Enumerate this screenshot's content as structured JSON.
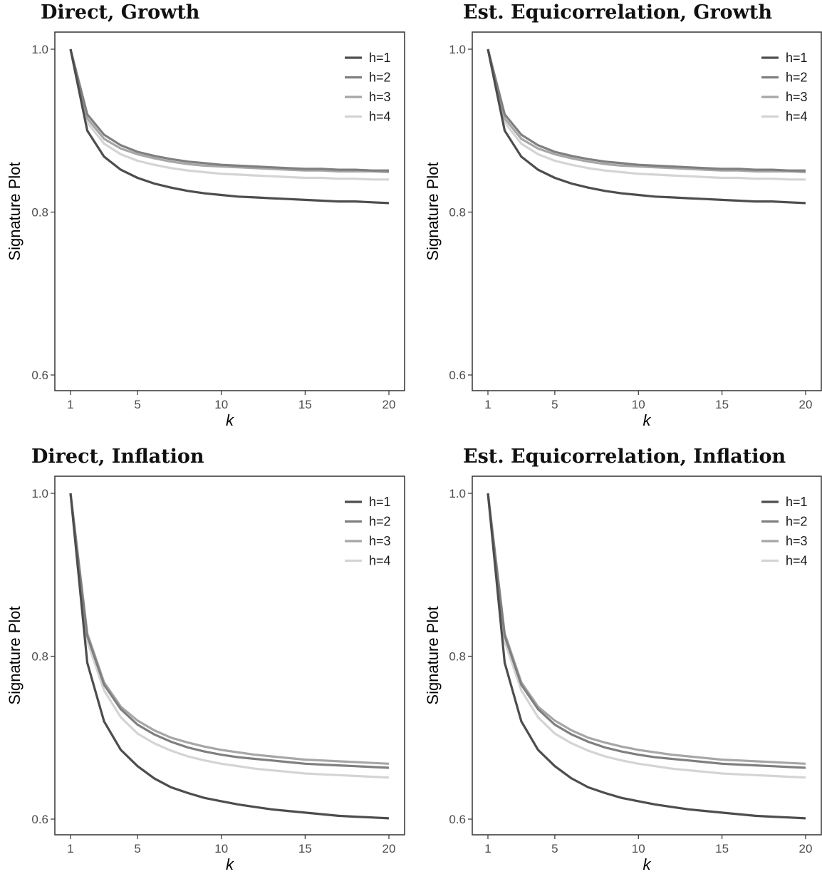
{
  "colors": {
    "h1": "#4d4d4d",
    "h2": "#7f7f7f",
    "h3": "#a6a6a6",
    "h4": "#d4d4d4",
    "axis": "#333333",
    "tick_label": "#4d4d4d"
  },
  "chart_data": [
    {
      "type": "line",
      "title": "Direct, Growth",
      "xlabel": "k",
      "ylabel": "Signature Plot",
      "xlim": [
        1,
        20
      ],
      "ylim": [
        0.6,
        1.0
      ],
      "xticks": [
        1,
        5,
        10,
        15,
        20
      ],
      "yticks": [
        0.6,
        0.8,
        1.0
      ],
      "ytick_labels": [
        "0.6",
        "0.8",
        "1.0"
      ],
      "legend_position": "top-right",
      "grid": false,
      "x": [
        1,
        2,
        3,
        4,
        5,
        6,
        7,
        8,
        9,
        10,
        11,
        12,
        13,
        14,
        15,
        16,
        17,
        18,
        19,
        20
      ],
      "series": [
        {
          "name": "h=1",
          "values": [
            1.0,
            0.9,
            0.868,
            0.852,
            0.842,
            0.835,
            0.83,
            0.826,
            0.823,
            0.821,
            0.819,
            0.818,
            0.817,
            0.816,
            0.815,
            0.814,
            0.813,
            0.813,
            0.812,
            0.811
          ]
        },
        {
          "name": "h=2",
          "values": [
            1.0,
            0.92,
            0.895,
            0.882,
            0.874,
            0.869,
            0.865,
            0.862,
            0.86,
            0.858,
            0.857,
            0.856,
            0.855,
            0.854,
            0.853,
            0.853,
            0.852,
            0.852,
            0.851,
            0.851
          ]
        },
        {
          "name": "h=3",
          "values": [
            1.0,
            0.915,
            0.89,
            0.878,
            0.871,
            0.866,
            0.862,
            0.859,
            0.857,
            0.856,
            0.855,
            0.854,
            0.853,
            0.852,
            0.851,
            0.851,
            0.85,
            0.85,
            0.85,
            0.849
          ]
        },
        {
          "name": "h=4",
          "values": [
            1.0,
            0.91,
            0.884,
            0.871,
            0.863,
            0.858,
            0.854,
            0.851,
            0.849,
            0.847,
            0.846,
            0.845,
            0.844,
            0.843,
            0.842,
            0.842,
            0.841,
            0.841,
            0.84,
            0.84
          ]
        }
      ]
    },
    {
      "type": "line",
      "title": "Est. Equicorrelation, Growth",
      "xlabel": "k",
      "ylabel": "Signature Plot",
      "xlim": [
        1,
        20
      ],
      "ylim": [
        0.6,
        1.0
      ],
      "xticks": [
        1,
        5,
        10,
        15,
        20
      ],
      "yticks": [
        0.6,
        0.8,
        1.0
      ],
      "ytick_labels": [
        "0.6",
        "0.8",
        "1.0"
      ],
      "legend_position": "top-right",
      "grid": false,
      "x": [
        1,
        2,
        3,
        4,
        5,
        6,
        7,
        8,
        9,
        10,
        11,
        12,
        13,
        14,
        15,
        16,
        17,
        18,
        19,
        20
      ],
      "series": [
        {
          "name": "h=1",
          "values": [
            1.0,
            0.9,
            0.868,
            0.852,
            0.842,
            0.835,
            0.83,
            0.826,
            0.823,
            0.821,
            0.819,
            0.818,
            0.817,
            0.816,
            0.815,
            0.814,
            0.813,
            0.813,
            0.812,
            0.811
          ]
        },
        {
          "name": "h=2",
          "values": [
            1.0,
            0.92,
            0.895,
            0.882,
            0.874,
            0.869,
            0.865,
            0.862,
            0.86,
            0.858,
            0.857,
            0.856,
            0.855,
            0.854,
            0.853,
            0.853,
            0.852,
            0.852,
            0.851,
            0.851
          ]
        },
        {
          "name": "h=3",
          "values": [
            1.0,
            0.915,
            0.89,
            0.878,
            0.871,
            0.866,
            0.862,
            0.859,
            0.857,
            0.856,
            0.855,
            0.854,
            0.853,
            0.852,
            0.851,
            0.851,
            0.85,
            0.85,
            0.85,
            0.849
          ]
        },
        {
          "name": "h=4",
          "values": [
            1.0,
            0.91,
            0.884,
            0.871,
            0.863,
            0.858,
            0.854,
            0.851,
            0.849,
            0.847,
            0.846,
            0.845,
            0.844,
            0.843,
            0.842,
            0.842,
            0.841,
            0.841,
            0.84,
            0.84
          ]
        }
      ]
    },
    {
      "type": "line",
      "title": "Direct, Inflation",
      "xlabel": "k",
      "ylabel": "Signature Plot",
      "xlim": [
        1,
        20
      ],
      "ylim": [
        0.6,
        1.0
      ],
      "xticks": [
        1,
        5,
        10,
        15,
        20
      ],
      "yticks": [
        0.6,
        0.8,
        1.0
      ],
      "ytick_labels": [
        "0.6",
        "0.8",
        "1.0"
      ],
      "legend_position": "top-right",
      "grid": false,
      "x": [
        1,
        2,
        3,
        4,
        5,
        6,
        7,
        8,
        9,
        10,
        11,
        12,
        13,
        14,
        15,
        16,
        17,
        18,
        19,
        20
      ],
      "series": [
        {
          "name": "h=1",
          "values": [
            1.0,
            0.792,
            0.72,
            0.685,
            0.665,
            0.65,
            0.639,
            0.632,
            0.626,
            0.622,
            0.618,
            0.615,
            0.612,
            0.61,
            0.608,
            0.606,
            0.604,
            0.603,
            0.602,
            0.601
          ]
        },
        {
          "name": "h=2",
          "values": [
            1.0,
            0.825,
            0.765,
            0.735,
            0.716,
            0.704,
            0.695,
            0.688,
            0.683,
            0.679,
            0.676,
            0.674,
            0.672,
            0.67,
            0.668,
            0.667,
            0.666,
            0.665,
            0.664,
            0.663
          ]
        },
        {
          "name": "h=3",
          "values": [
            1.0,
            0.828,
            0.768,
            0.738,
            0.721,
            0.709,
            0.7,
            0.694,
            0.689,
            0.685,
            0.682,
            0.679,
            0.677,
            0.675,
            0.673,
            0.672,
            0.671,
            0.67,
            0.669,
            0.668
          ]
        },
        {
          "name": "h=4",
          "values": [
            1.0,
            0.818,
            0.758,
            0.725,
            0.705,
            0.693,
            0.684,
            0.677,
            0.672,
            0.668,
            0.665,
            0.662,
            0.66,
            0.658,
            0.656,
            0.655,
            0.654,
            0.653,
            0.652,
            0.651
          ]
        }
      ]
    },
    {
      "type": "line",
      "title": "Est. Equicorrelation, Inflation",
      "xlabel": "k",
      "ylabel": "Signature Plot",
      "xlim": [
        1,
        20
      ],
      "ylim": [
        0.6,
        1.0
      ],
      "xticks": [
        1,
        5,
        10,
        15,
        20
      ],
      "yticks": [
        0.6,
        0.8,
        1.0
      ],
      "ytick_labels": [
        "0.6",
        "0.8",
        "1.0"
      ],
      "legend_position": "top-right",
      "grid": false,
      "x": [
        1,
        2,
        3,
        4,
        5,
        6,
        7,
        8,
        9,
        10,
        11,
        12,
        13,
        14,
        15,
        16,
        17,
        18,
        19,
        20
      ],
      "series": [
        {
          "name": "h=1",
          "values": [
            1.0,
            0.792,
            0.72,
            0.685,
            0.665,
            0.65,
            0.639,
            0.632,
            0.626,
            0.622,
            0.618,
            0.615,
            0.612,
            0.61,
            0.608,
            0.606,
            0.604,
            0.603,
            0.602,
            0.601
          ]
        },
        {
          "name": "h=2",
          "values": [
            1.0,
            0.825,
            0.765,
            0.735,
            0.716,
            0.704,
            0.695,
            0.688,
            0.683,
            0.679,
            0.676,
            0.674,
            0.672,
            0.67,
            0.668,
            0.667,
            0.666,
            0.665,
            0.664,
            0.663
          ]
        },
        {
          "name": "h=3",
          "values": [
            1.0,
            0.828,
            0.768,
            0.738,
            0.721,
            0.709,
            0.7,
            0.694,
            0.689,
            0.685,
            0.682,
            0.679,
            0.677,
            0.675,
            0.673,
            0.672,
            0.671,
            0.67,
            0.669,
            0.668
          ]
        },
        {
          "name": "h=4",
          "values": [
            1.0,
            0.818,
            0.758,
            0.725,
            0.705,
            0.693,
            0.684,
            0.677,
            0.672,
            0.668,
            0.665,
            0.662,
            0.66,
            0.658,
            0.656,
            0.655,
            0.654,
            0.653,
            0.652,
            0.651
          ]
        }
      ]
    }
  ]
}
